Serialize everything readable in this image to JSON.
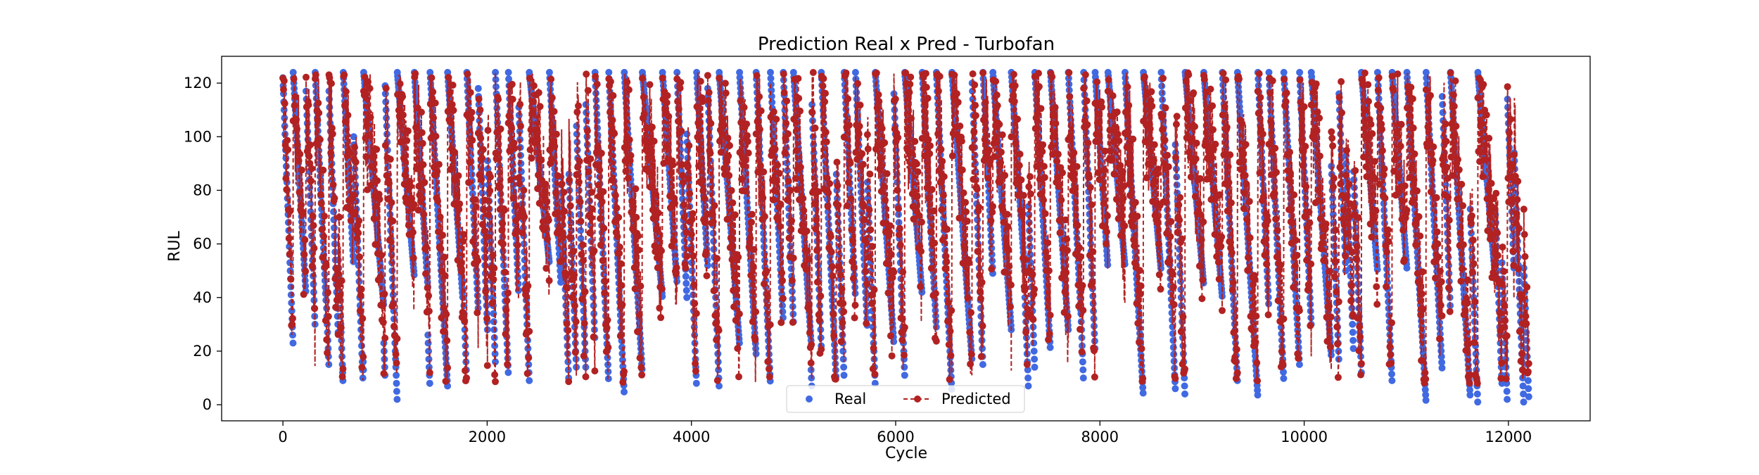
{
  "chart_data": {
    "type": "line",
    "title": "Prediction Real x Pred - Turbofan",
    "xlabel": "Cycle",
    "ylabel": "RUL",
    "xlim": [
      -600,
      12800
    ],
    "ylim": [
      -6,
      130
    ],
    "xticks": [
      0,
      2000,
      4000,
      6000,
      8000,
      10000,
      12000
    ],
    "yticks": [
      0,
      20,
      40,
      60,
      80,
      100,
      120
    ],
    "grid": false,
    "legend": {
      "placement": "lower center",
      "ncol": 2
    },
    "x_range": [
      0,
      12200
    ],
    "series": [
      {
        "name": "Real",
        "style": "markers",
        "color": "#4169e1",
        "values": "sawtooth per engine unit: starts at ~124 (capped), descends to a minimum RUL (≈0–50) and resets; about 100 units across cycles 0–12200; min values ≈0 near cycles 11900–12200"
      },
      {
        "name": "Predicted",
        "style": "dashed line with markers",
        "color": "#b22222",
        "values": "noisy estimates oscillating between ≈8 and ≈124 following the real RUL with lag and noise"
      }
    ],
    "minima_samples": [
      {
        "x": 100,
        "y": 22
      },
      {
        "x": 450,
        "y": 14
      },
      {
        "x": 590,
        "y": 7
      },
      {
        "x": 790,
        "y": 12
      },
      {
        "x": 1000,
        "y": 11
      },
      {
        "x": 1440,
        "y": 6
      },
      {
        "x": 1800,
        "y": 9
      },
      {
        "x": 2080,
        "y": 16
      },
      {
        "x": 2800,
        "y": 8
      },
      {
        "x": 4050,
        "y": 7
      },
      {
        "x": 5180,
        "y": 5
      },
      {
        "x": 5800,
        "y": 7
      },
      {
        "x": 6550,
        "y": 5
      },
      {
        "x": 7300,
        "y": 6
      },
      {
        "x": 7840,
        "y": 8
      },
      {
        "x": 9800,
        "y": 9
      },
      {
        "x": 10340,
        "y": 16
      },
      {
        "x": 11700,
        "y": 0
      },
      {
        "x": 11990,
        "y": 0
      },
      {
        "x": 12150,
        "y": 0
      }
    ]
  }
}
